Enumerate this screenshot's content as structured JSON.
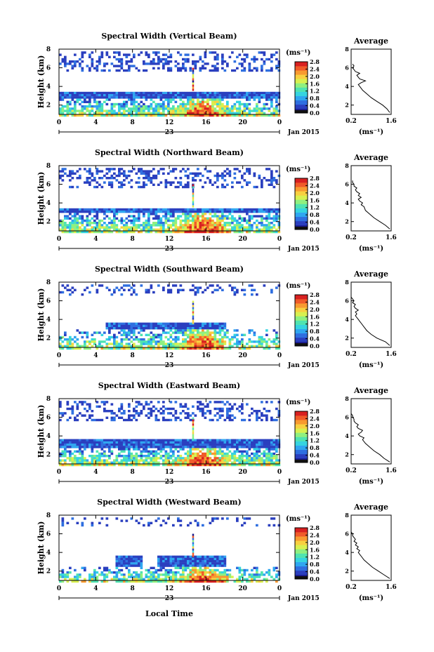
{
  "figure": {
    "x_axis_label": "Local Time"
  },
  "palette": [
    "#1a1a8c",
    "#2a3fbf",
    "#2f6fe0",
    "#2fa6f0",
    "#35d4e0",
    "#4fe3b0",
    "#8ff080",
    "#d8f050",
    "#f8d040",
    "#f89a30",
    "#f05a28",
    "#d82020"
  ],
  "chart_data": [
    {
      "type": "heatmap",
      "title": "Spectral Width (Vertical Beam)",
      "ylabel": "Height (km)",
      "xlabel": "Local Time",
      "x_ticks": [
        "0",
        "4",
        "8",
        "12",
        "16",
        "20",
        "0"
      ],
      "x_date_label": "23",
      "x_month_label": "Jan 2015",
      "xlim": [
        0,
        24
      ],
      "ylim": [
        1,
        8
      ],
      "y_ticks": [
        "2",
        "4",
        "6",
        "8"
      ],
      "colorbar": {
        "unit": "(ms⁻¹)",
        "ticks": [
          "0.0",
          "0.4",
          "0.8",
          "1.2",
          "1.6",
          "2.0",
          "2.4",
          "2.8"
        ],
        "range": [
          0,
          2.8
        ]
      },
      "layers": {
        "upper_top": 7.9,
        "upper_bottom": 5.6,
        "upper_density": 0.35,
        "mid_top": 3.6,
        "mid_low": 2.9,
        "mid_start": 0,
        "mid_end": 24,
        "gap": null
      },
      "profile": {
        "title": "Average",
        "xlabel": "(ms⁻¹)",
        "x_ticks": [
          "0.2",
          "1.6"
        ],
        "xlim": [
          0.2,
          1.6
        ],
        "y_ticks": [
          "2",
          "4",
          "6",
          "8"
        ],
        "x": [
          1.55,
          1.45,
          1.3,
          1.1,
          0.9,
          0.75,
          0.6,
          0.55,
          0.5,
          0.45,
          0.55,
          0.7,
          0.5,
          0.45,
          0.4,
          0.5,
          0.35,
          0.3,
          0.25,
          0.3,
          0.25
        ],
        "y": [
          1.2,
          1.6,
          2.0,
          2.4,
          2.8,
          3.2,
          3.6,
          3.8,
          4.0,
          4.2,
          4.4,
          4.6,
          4.8,
          5.0,
          5.2,
          5.4,
          5.6,
          5.8,
          6.0,
          6.2,
          6.4
        ]
      }
    },
    {
      "type": "heatmap",
      "title": "Spectral Width (Northward Beam)",
      "ylabel": "Height (km)",
      "xlabel": "Local Time",
      "x_ticks": [
        "0",
        "4",
        "8",
        "12",
        "16",
        "20",
        "0"
      ],
      "x_date_label": "23",
      "x_month_label": "Jan 2015",
      "xlim": [
        0,
        24
      ],
      "ylim": [
        1,
        8
      ],
      "y_ticks": [
        "2",
        "4",
        "6",
        "8"
      ],
      "colorbar": {
        "unit": "(ms⁻¹)",
        "ticks": [
          "0.0",
          "0.4",
          "0.8",
          "1.2",
          "1.6",
          "2.0",
          "2.4",
          "2.8"
        ],
        "range": [
          0,
          2.8
        ]
      },
      "layers": {
        "upper_top": 7.9,
        "upper_bottom": 5.8,
        "upper_density": 0.3,
        "mid_top": 3.6,
        "mid_low": 3.0,
        "mid_start": 0,
        "mid_end": 24,
        "gap": null
      },
      "profile": {
        "title": "Average",
        "xlabel": "(ms⁻¹)",
        "x_ticks": [
          "0.2",
          "1.6"
        ],
        "xlim": [
          0.2,
          1.6
        ],
        "y_ticks": [
          "2",
          "4",
          "6",
          "8"
        ],
        "x": [
          1.55,
          1.4,
          1.2,
          1.0,
          0.85,
          0.7,
          0.65,
          0.55,
          0.6,
          0.5,
          0.45,
          0.55,
          0.45,
          0.5,
          0.4,
          0.35,
          0.4,
          0.3,
          0.3,
          0.25,
          0.25
        ],
        "y": [
          1.2,
          1.6,
          2.0,
          2.4,
          2.8,
          3.2,
          3.6,
          3.8,
          4.0,
          4.2,
          4.4,
          4.6,
          4.8,
          5.0,
          5.2,
          5.4,
          5.6,
          5.8,
          6.0,
          6.2,
          6.4
        ]
      }
    },
    {
      "type": "heatmap",
      "title": "Spectral Width (Southward Beam)",
      "ylabel": "Height (km)",
      "xlabel": "Local Time",
      "x_ticks": [
        "0",
        "4",
        "8",
        "12",
        "16",
        "20",
        "0"
      ],
      "x_date_label": "23",
      "x_month_label": "Jan 2015",
      "xlim": [
        0,
        24
      ],
      "ylim": [
        1,
        8
      ],
      "y_ticks": [
        "2",
        "4",
        "6",
        "8"
      ],
      "colorbar": {
        "unit": "(ms⁻¹)",
        "ticks": [
          "0.0",
          "0.4",
          "0.8",
          "1.2",
          "1.6",
          "2.0",
          "2.4",
          "2.8"
        ],
        "range": [
          0,
          2.8
        ]
      },
      "layers": {
        "upper_top": 7.9,
        "upper_bottom": 6.6,
        "upper_density": 0.22,
        "mid_top": 3.8,
        "mid_low": 3.0,
        "mid_start": 5,
        "mid_end": 18,
        "gap": null
      },
      "profile": {
        "title": "Average",
        "xlabel": "(ms⁻¹)",
        "x_ticks": [
          "0.2",
          "1.6"
        ],
        "xlim": [
          0.2,
          1.6
        ],
        "y_ticks": [
          "2",
          "4",
          "6",
          "8"
        ],
        "x": [
          1.55,
          1.4,
          1.1,
          0.9,
          0.75,
          0.65,
          0.55,
          0.5,
          0.45,
          0.4,
          0.35,
          0.4,
          0.35,
          0.45,
          0.35,
          0.3,
          0.35,
          0.25,
          0.3,
          0.25,
          0.2
        ],
        "y": [
          1.2,
          1.6,
          2.0,
          2.4,
          2.8,
          3.2,
          3.6,
          3.8,
          4.0,
          4.2,
          4.4,
          4.6,
          4.8,
          5.0,
          5.2,
          5.4,
          5.6,
          5.8,
          6.0,
          6.2,
          6.4
        ]
      }
    },
    {
      "type": "heatmap",
      "title": "Spectral Width (Eastward Beam)",
      "ylabel": "Height (km)",
      "xlabel": "Local Time",
      "x_ticks": [
        "0",
        "4",
        "8",
        "12",
        "16",
        "20",
        "0"
      ],
      "x_date_label": "23",
      "x_month_label": "Jan 2015",
      "xlim": [
        0,
        24
      ],
      "ylim": [
        1,
        8
      ],
      "y_ticks": [
        "2",
        "4",
        "6",
        "8"
      ],
      "colorbar": {
        "unit": "(ms⁻¹)",
        "ticks": [
          "0.0",
          "0.4",
          "0.8",
          "1.2",
          "1.6",
          "2.0",
          "2.4",
          "2.8"
        ],
        "range": [
          0,
          2.8
        ]
      },
      "layers": {
        "upper_top": 7.9,
        "upper_bottom": 5.8,
        "upper_density": 0.32,
        "mid_top": 3.8,
        "mid_low": 2.9,
        "mid_start": 0,
        "mid_end": 24,
        "gap": null
      },
      "profile": {
        "title": "Average",
        "xlabel": "(ms⁻¹)",
        "x_ticks": [
          "0.2",
          "1.6"
        ],
        "xlim": [
          0.2,
          1.6
        ],
        "y_ticks": [
          "2",
          "4",
          "6",
          "8"
        ],
        "x": [
          1.55,
          1.35,
          1.2,
          1.0,
          0.85,
          0.7,
          0.6,
          0.65,
          0.5,
          0.45,
          0.55,
          0.6,
          0.45,
          0.4,
          0.45,
          0.35,
          0.3,
          0.3,
          0.25,
          0.25,
          0.2
        ],
        "y": [
          1.2,
          1.6,
          2.0,
          2.4,
          2.8,
          3.2,
          3.6,
          3.8,
          4.0,
          4.2,
          4.4,
          4.6,
          4.8,
          5.0,
          5.2,
          5.4,
          5.6,
          5.8,
          6.0,
          6.2,
          6.4
        ]
      }
    },
    {
      "type": "heatmap",
      "title": "Spectral Width (Westward Beam)",
      "ylabel": "Height (km)",
      "xlabel": "Local Time",
      "x_ticks": [
        "0",
        "4",
        "8",
        "12",
        "16",
        "20",
        "0"
      ],
      "x_date_label": "23",
      "x_month_label": "Jan 2015",
      "xlim": [
        0,
        24
      ],
      "ylim": [
        1,
        8
      ],
      "y_ticks": [
        "2",
        "4",
        "6",
        "8"
      ],
      "colorbar": {
        "unit": "(ms⁻¹)",
        "ticks": [
          "0.0",
          "0.4",
          "0.8",
          "1.2",
          "1.6",
          "2.0",
          "2.4",
          "2.8"
        ],
        "range": [
          0,
          2.8
        ]
      },
      "layers": {
        "upper_top": 7.9,
        "upper_bottom": 6.8,
        "upper_density": 0.15,
        "mid_top": 3.9,
        "mid_low": 2.6,
        "mid_start": 6,
        "mid_end": 18,
        "gap": [
          9,
          10.5
        ]
      },
      "profile": {
        "title": "Average",
        "xlabel": "(ms⁻¹)",
        "x_ticks": [
          "0.2",
          "1.6"
        ],
        "xlim": [
          0.2,
          1.6
        ],
        "y_ticks": [
          "2",
          "4",
          "6",
          "8"
        ],
        "x": [
          1.55,
          1.35,
          1.15,
          0.95,
          0.8,
          0.65,
          0.55,
          0.5,
          0.45,
          0.5,
          0.4,
          0.45,
          0.35,
          0.4,
          0.3,
          0.35,
          0.3,
          0.25,
          0.25,
          0.2,
          0.2
        ],
        "y": [
          1.2,
          1.6,
          2.0,
          2.4,
          2.8,
          3.2,
          3.6,
          3.8,
          4.0,
          4.2,
          4.4,
          4.6,
          4.8,
          5.0,
          5.2,
          5.4,
          5.6,
          5.8,
          6.0,
          6.2,
          6.4
        ]
      }
    }
  ]
}
